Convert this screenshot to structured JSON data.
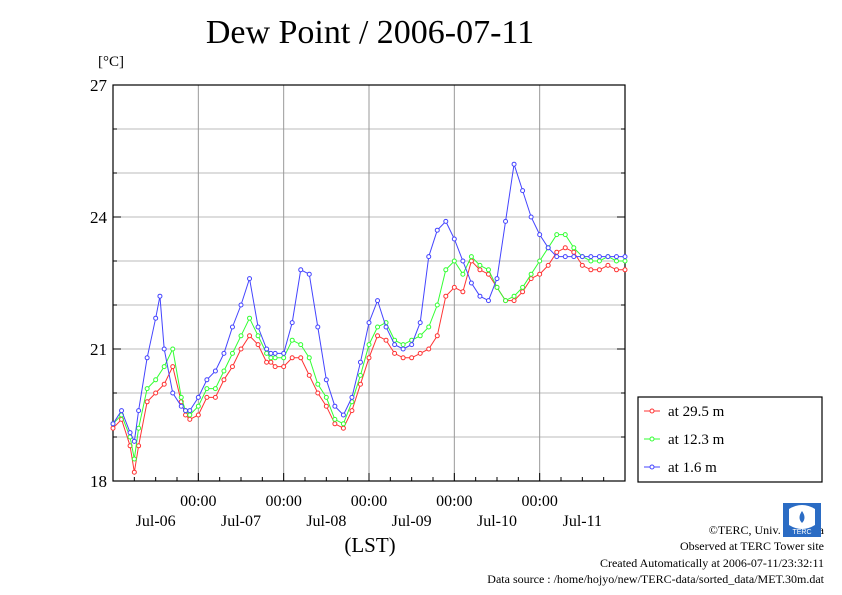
{
  "chart_data": {
    "type": "line",
    "title": "Dew Point / 2006-07-11",
    "ylabel": "[°C]",
    "xlabel": "(LST)",
    "ylim": [
      18,
      27
    ],
    "xlim": [
      0,
      6
    ],
    "y_ticks": [
      18,
      21,
      24,
      27
    ],
    "x_ticks": [
      1,
      2,
      3,
      4,
      5
    ],
    "x_tick_labels": [
      "00:00",
      "00:00",
      "00:00",
      "00:00",
      "00:00"
    ],
    "date_labels": [
      "Jul-06",
      "Jul-07",
      "Jul-08",
      "Jul-09",
      "Jul-10",
      "Jul-11"
    ],
    "grid": true,
    "legend_position": "right",
    "units_x": "days",
    "series": [
      {
        "name": "at 29.5 m",
        "color": "#ff3333",
        "x": [
          0,
          0.1,
          0.2,
          0.25,
          0.3,
          0.4,
          0.5,
          0.6,
          0.7,
          0.8,
          0.85,
          0.9,
          1,
          1.1,
          1.2,
          1.3,
          1.4,
          1.5,
          1.6,
          1.7,
          1.8,
          1.85,
          1.9,
          2,
          2.1,
          2.2,
          2.3,
          2.4,
          2.5,
          2.6,
          2.7,
          2.8,
          2.9,
          3,
          3.1,
          3.2,
          3.3,
          3.4,
          3.5,
          3.6,
          3.7,
          3.8,
          3.9,
          4,
          4.1,
          4.2,
          4.3,
          4.4,
          4.5,
          4.6,
          4.7,
          4.8,
          4.9,
          5,
          5.1,
          5.2,
          5.3,
          5.4,
          5.5,
          5.6,
          5.7,
          5.8,
          5.9,
          6
        ],
        "values": [
          19.2,
          19.4,
          18.8,
          18.2,
          18.8,
          19.8,
          20.0,
          20.2,
          20.6,
          19.8,
          19.5,
          19.4,
          19.5,
          19.9,
          19.9,
          20.3,
          20.6,
          21.0,
          21.3,
          21.1,
          20.7,
          20.7,
          20.6,
          20.6,
          20.8,
          20.8,
          20.4,
          20.0,
          19.7,
          19.3,
          19.2,
          19.6,
          20.2,
          20.8,
          21.3,
          21.2,
          20.9,
          20.8,
          20.8,
          20.9,
          21.0,
          21.3,
          22.2,
          22.4,
          22.3,
          23.0,
          22.8,
          22.7,
          22.4,
          22.1,
          22.1,
          22.3,
          22.6,
          22.7,
          22.9,
          23.2,
          23.3,
          23.2,
          22.9,
          22.8,
          22.8,
          22.9,
          22.8,
          22.8
        ]
      },
      {
        "name": "at 12.3 m",
        "color": "#33ff33",
        "x": [
          0,
          0.1,
          0.2,
          0.25,
          0.3,
          0.4,
          0.5,
          0.6,
          0.7,
          0.8,
          0.85,
          0.9,
          1,
          1.1,
          1.2,
          1.3,
          1.4,
          1.5,
          1.6,
          1.7,
          1.8,
          1.85,
          1.9,
          2,
          2.1,
          2.2,
          2.3,
          2.4,
          2.5,
          2.6,
          2.7,
          2.8,
          2.9,
          3,
          3.1,
          3.2,
          3.3,
          3.4,
          3.5,
          3.6,
          3.7,
          3.8,
          3.9,
          4,
          4.1,
          4.2,
          4.3,
          4.4,
          4.5,
          4.6,
          4.7,
          4.8,
          4.9,
          5,
          5.1,
          5.2,
          5.3,
          5.4,
          5.5,
          5.6,
          5.7,
          5.8,
          5.9,
          6
        ],
        "values": [
          19.3,
          19.5,
          19.0,
          18.5,
          19.2,
          20.1,
          20.3,
          20.6,
          21.0,
          19.9,
          19.6,
          19.5,
          19.7,
          20.1,
          20.1,
          20.5,
          20.9,
          21.3,
          21.7,
          21.3,
          20.9,
          20.8,
          20.8,
          20.8,
          21.2,
          21.1,
          20.8,
          20.2,
          19.9,
          19.4,
          19.3,
          19.8,
          20.4,
          21.1,
          21.5,
          21.6,
          21.2,
          21.1,
          21.2,
          21.3,
          21.5,
          22.0,
          22.8,
          23.0,
          22.7,
          23.1,
          22.9,
          22.8,
          22.4,
          22.1,
          22.2,
          22.4,
          22.7,
          23.0,
          23.3,
          23.6,
          23.6,
          23.3,
          23.1,
          23.0,
          23.0,
          23.1,
          23.0,
          23.0
        ]
      },
      {
        "name": "at 1.6 m",
        "color": "#4444ff",
        "x": [
          0,
          0.1,
          0.2,
          0.25,
          0.3,
          0.4,
          0.5,
          0.55,
          0.6,
          0.7,
          0.8,
          0.85,
          0.9,
          1,
          1.1,
          1.2,
          1.3,
          1.4,
          1.5,
          1.6,
          1.7,
          1.8,
          1.85,
          1.9,
          2,
          2.1,
          2.2,
          2.3,
          2.4,
          2.5,
          2.6,
          2.7,
          2.8,
          2.9,
          3,
          3.1,
          3.2,
          3.3,
          3.4,
          3.5,
          3.6,
          3.7,
          3.8,
          3.9,
          4,
          4.1,
          4.2,
          4.3,
          4.4,
          4.5,
          4.6,
          4.7,
          4.8,
          4.9,
          5,
          5.1,
          5.2,
          5.3,
          5.4,
          5.5,
          5.6,
          5.7,
          5.8,
          5.9,
          6
        ],
        "values": [
          19.3,
          19.6,
          19.1,
          18.9,
          19.6,
          20.8,
          21.7,
          22.2,
          21.0,
          20.0,
          19.7,
          19.6,
          19.6,
          19.9,
          20.3,
          20.5,
          20.9,
          21.5,
          22.0,
          22.6,
          21.5,
          21.0,
          20.9,
          20.9,
          20.9,
          21.6,
          22.8,
          22.7,
          21.5,
          20.3,
          19.7,
          19.5,
          19.9,
          20.7,
          21.6,
          22.1,
          21.5,
          21.1,
          21.0,
          21.1,
          21.6,
          23.1,
          23.7,
          23.9,
          23.5,
          23.0,
          22.5,
          22.2,
          22.1,
          22.6,
          23.9,
          25.2,
          24.6,
          24.0,
          23.6,
          23.3,
          23.1,
          23.1,
          23.1,
          23.1,
          23.1,
          23.1,
          23.1,
          23.1,
          23.1
        ]
      }
    ]
  },
  "footer": {
    "copyright": "©TERC, Univ. Tsukuba",
    "observed": "Observed at TERC Tower site",
    "created": "Created Automatically at 2006-07-11/23:32:11",
    "source": "Data source : /home/hojyo/new/TERC-data/sorted_data/MET.30m.dat",
    "logo_text": "TERC"
  }
}
